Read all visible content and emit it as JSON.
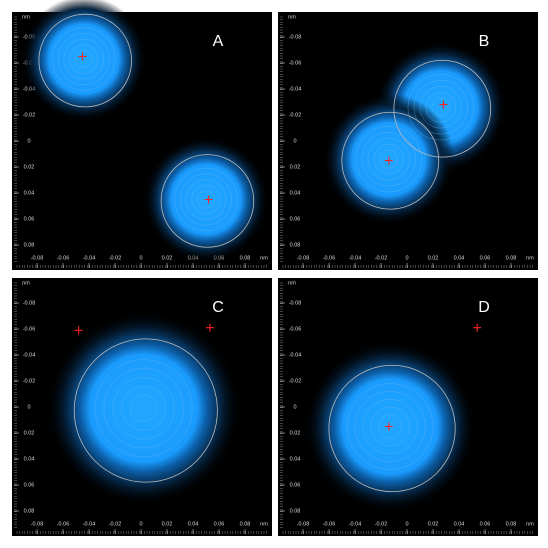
{
  "chart_data": [
    {
      "type": "density",
      "label": "A",
      "x_unit": "nm",
      "y_unit": "nm",
      "xlim": [
        -0.1,
        0.1
      ],
      "ylim": [
        -0.1,
        0.1
      ],
      "xticks": [
        -0.08,
        -0.06,
        -0.04,
        -0.02,
        0,
        0.02,
        0.04,
        0.06,
        0.08
      ],
      "yticks": [
        -0.08,
        -0.06,
        -0.04,
        -0.02,
        0,
        0.02,
        0.04,
        0.06,
        0.08
      ],
      "blobs": [
        {
          "x": -0.044,
          "y": -0.063,
          "r": 0.022
        },
        {
          "x": 0.05,
          "y": 0.045,
          "r": 0.022
        }
      ],
      "markers": {
        "x": [
          -0.045,
          0.052
        ],
        "y": [
          -0.065,
          0.045
        ]
      }
    },
    {
      "type": "density",
      "label": "B",
      "x_unit": "nm",
      "y_unit": "nm",
      "xlim": [
        -0.1,
        0.1
      ],
      "ylim": [
        -0.1,
        0.1
      ],
      "xticks": [
        -0.08,
        -0.06,
        -0.04,
        -0.02,
        0,
        0.02,
        0.04,
        0.06,
        0.08
      ],
      "yticks": [
        -0.08,
        -0.06,
        -0.04,
        -0.02,
        0,
        0.02,
        0.04,
        0.06,
        0.08
      ],
      "blobs": [
        {
          "x": 0.026,
          "y": -0.026,
          "r": 0.023
        },
        {
          "x": -0.014,
          "y": 0.014,
          "r": 0.023
        }
      ],
      "markers": {
        "x": [
          0.028,
          -0.014
        ],
        "y": [
          -0.028,
          0.015
        ]
      }
    },
    {
      "type": "density",
      "label": "C",
      "x_unit": "nm",
      "y_unit": "nm",
      "xlim": [
        -0.1,
        0.1
      ],
      "ylim": [
        -0.1,
        0.1
      ],
      "xticks": [
        -0.08,
        -0.06,
        -0.04,
        -0.02,
        0,
        0.02,
        0.04,
        0.06,
        0.08
      ],
      "yticks": [
        -0.08,
        -0.06,
        -0.04,
        -0.02,
        0,
        0.02,
        0.04,
        0.06,
        0.08
      ],
      "blobs": [
        {
          "x": 0.002,
          "y": 0.001,
          "r": 0.034
        }
      ],
      "markers": {
        "x": [
          -0.048,
          0.053
        ],
        "y": [
          -0.059,
          -0.061
        ]
      }
    },
    {
      "type": "density",
      "label": "D",
      "x_unit": "nm",
      "y_unit": "nm",
      "xlim": [
        -0.1,
        0.1
      ],
      "ylim": [
        -0.1,
        0.1
      ],
      "xticks": [
        -0.08,
        -0.06,
        -0.04,
        -0.02,
        0,
        0.02,
        0.04,
        0.06,
        0.08
      ],
      "yticks": [
        -0.08,
        -0.06,
        -0.04,
        -0.02,
        0,
        0.02,
        0.04,
        0.06,
        0.08
      ],
      "blobs": [
        {
          "x": -0.013,
          "y": 0.015,
          "r": 0.03
        }
      ],
      "markers": {
        "x": [
          0.054,
          -0.014
        ],
        "y": [
          -0.061,
          0.015
        ]
      }
    }
  ]
}
